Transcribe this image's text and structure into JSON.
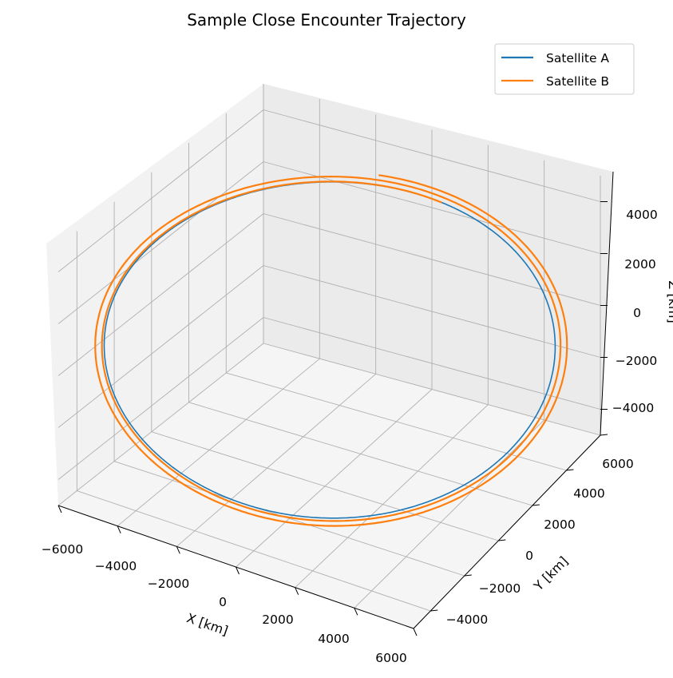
{
  "chart_data": {
    "type": "line-3d",
    "title": "Sample Close Encounter Trajectory",
    "xlabel": "X [km]",
    "ylabel": "Y [km]",
    "zlabel": "Z [km]",
    "xlim": [
      -6000,
      6000
    ],
    "ylim": [
      -5000,
      6000
    ],
    "zlim": [
      -5000,
      5000
    ],
    "x_ticks": [
      "−6000",
      "−4000",
      "−2000",
      "0",
      "2000",
      "4000",
      "6000"
    ],
    "y_ticks": [
      "−4000",
      "−2000",
      "0",
      "2000",
      "4000",
      "6000"
    ],
    "z_ticks": [
      "−4000",
      "−2000",
      "0",
      "2000",
      "4000"
    ],
    "grid": true,
    "legend_position": "top-right",
    "series": [
      {
        "name": "Satellite A",
        "color": "#1f77b4",
        "orbit_radius_km": 7000,
        "revolutions": 1.0,
        "phase_deg": 60,
        "outward_drift_km": 0
      },
      {
        "name": "Satellite B",
        "color": "#ff7f0e",
        "orbit_radius_km": 7000,
        "revolutions": 2.05,
        "phase_deg": 63,
        "outward_drift_km": 700
      }
    ]
  }
}
